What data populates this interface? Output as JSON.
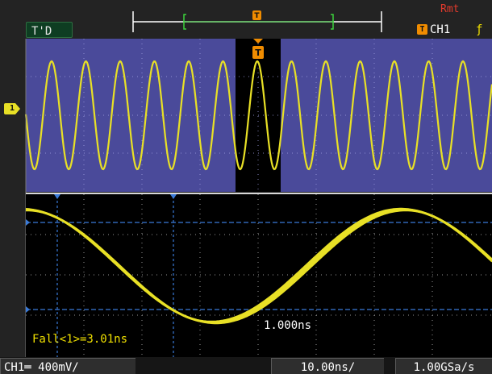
{
  "status": "T'D",
  "remote": "Rmt",
  "trigger": {
    "icon": "trigger-t-icon",
    "channel": "CH1",
    "slope_icon": "rising-edge-icon"
  },
  "channel_marker": "1",
  "measurement": "Fall<1>=3.01ns",
  "cursor_delta": "1.000ns",
  "bottom": {
    "ch1": "CH1═ 400mV/",
    "timebase": "10.00ns/",
    "sample_rate": "1.00GSa/s"
  },
  "colors": {
    "trace": "#e8e026",
    "main_bg": "#4a4a9a",
    "zoom_bg": "#000000",
    "cursor": "#3a7ad8",
    "trigger": "#f08c00"
  }
}
